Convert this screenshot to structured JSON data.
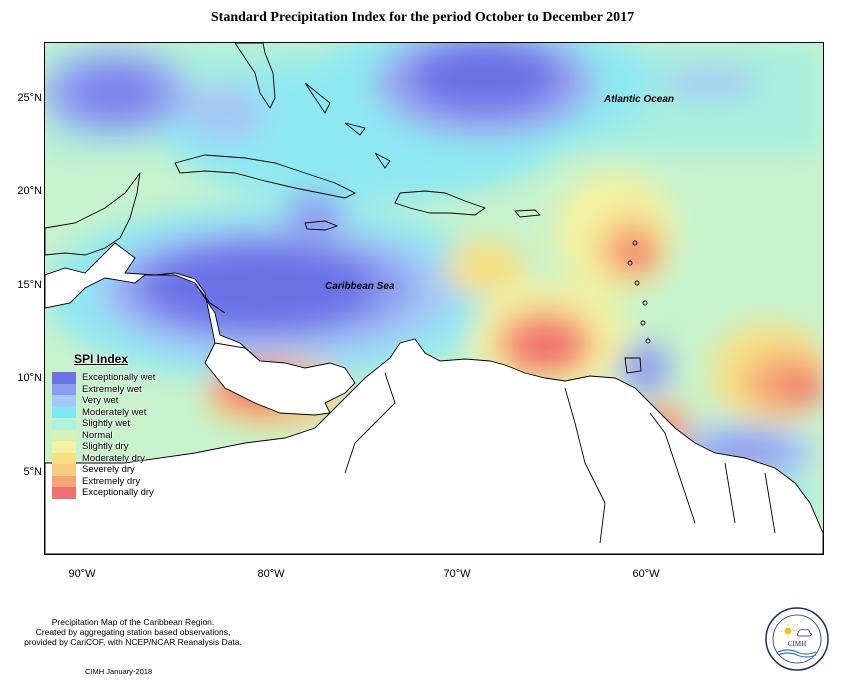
{
  "title": "Standard Precipitation Index for the period October to December 2017",
  "map": {
    "latitude_labels": [
      "25°N",
      "20°N",
      "15°N",
      "10°N",
      "5°N"
    ],
    "longitude_labels": [
      "90°W",
      "80°W",
      "70°W",
      "60°W"
    ],
    "places": {
      "atlantic": "Atlantic Ocean",
      "caribbean": "Caribbean Sea"
    }
  },
  "legend": {
    "title": "SPI Index",
    "items": [
      {
        "label": "Exceptionally wet",
        "color": "#6b72e6"
      },
      {
        "label": "Extremely wet",
        "color": "#8e9cf0"
      },
      {
        "label": "Very wet",
        "color": "#a6c8f6"
      },
      {
        "label": "Moderately wet",
        "color": "#7fe6f4"
      },
      {
        "label": "Slightly wet",
        "color": "#b2f2dc"
      },
      {
        "label": "Normal",
        "color": "#d4f2b8"
      },
      {
        "label": "Slightly dry",
        "color": "#f4f2a0"
      },
      {
        "label": "Moderately dry",
        "color": "#f7e083"
      },
      {
        "label": "Severely dry",
        "color": "#f6cc7e"
      },
      {
        "label": "Extremely dry",
        "color": "#f5a478"
      },
      {
        "label": "Exceptionally dry",
        "color": "#f07070"
      }
    ]
  },
  "footer": {
    "line1": "Precipitation Map of the Caribbean Region.",
    "line2": "Created by aggregating station based observations,",
    "line3": "provided by CariCOF, with NCEP/NCAR Reanalysis Data.",
    "credit": "CIMH January-2018"
  },
  "logo": {
    "text": "CIMH"
  }
}
